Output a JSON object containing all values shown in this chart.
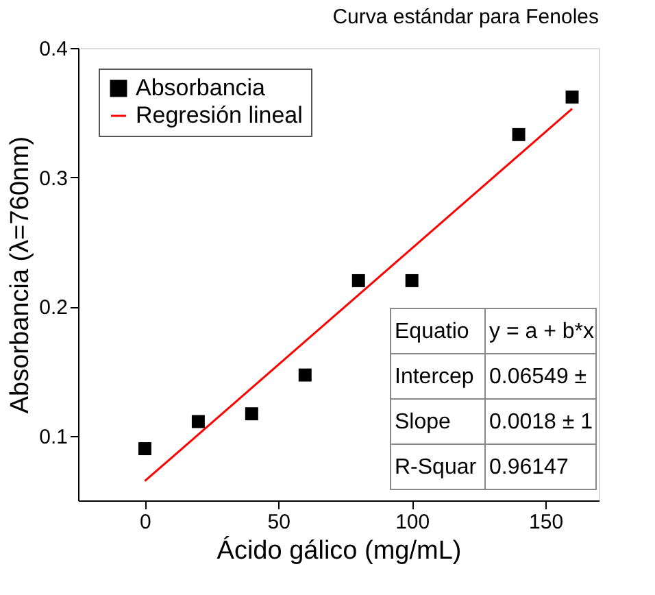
{
  "chart_data": {
    "type": "scatter",
    "title": "Curva estándar para Fenoles",
    "xlabel": "Ácido gálico (mg/mL)",
    "ylabel": "Absorbancia  (λ=760nm)",
    "xlim": [
      -25,
      170
    ],
    "xticks": [
      0,
      50,
      100,
      150
    ],
    "ylim": [
      0.05,
      0.4
    ],
    "yticks": [
      0.1,
      0.2,
      0.3,
      0.4
    ],
    "grid": false,
    "legend": "top left",
    "series": [
      {
        "name": "Absorbancia",
        "marker": "square",
        "color": "#000000",
        "x": [
          0,
          20,
          40,
          60,
          80,
          100,
          140,
          160
        ],
        "values": [
          0.09,
          0.111,
          0.117,
          0.147,
          0.22,
          0.22,
          0.333,
          0.362
        ]
      },
      {
        "name": "Regresión lineal",
        "type": "line",
        "marker": "none",
        "color": "#ff0000",
        "x": [
          0,
          160
        ],
        "values": [
          0.065,
          0.353
        ]
      }
    ],
    "annotations": [
      "Equatio",
      "y = a + b*x",
      "Intercep",
      "0.06549 ±",
      "Slope",
      "0.0018 ± 1",
      "R-Squar",
      "0.96147"
    ]
  }
}
